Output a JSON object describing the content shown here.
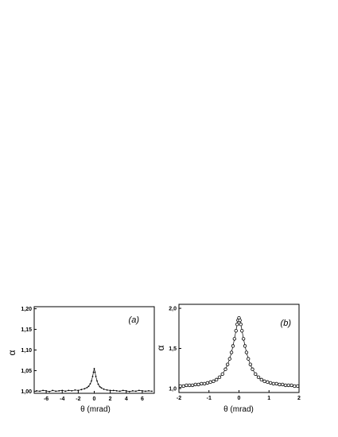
{
  "chart_data": [
    {
      "type": "scatter",
      "panel_label": "(a)",
      "xlabel": "θ (mrad)",
      "ylabel": "α",
      "xlim": [
        -7.5,
        7.5
      ],
      "ylim": [
        0.995,
        1.205
      ],
      "xticks": [
        -6,
        -4,
        -2,
        0,
        2,
        4,
        6
      ],
      "xtick_labels": [
        "-6",
        "-4",
        "-2",
        "0",
        "2",
        "4",
        "6"
      ],
      "yticks": [
        1.0,
        1.05,
        1.1,
        1.15,
        1.2
      ],
      "ytick_labels": [
        "1,00",
        "1,05",
        "1,10",
        "1,15",
        "1,20"
      ],
      "grid": false,
      "series": [
        {
          "marker": "dot",
          "x": [
            -7.2,
            -6.8,
            -6.4,
            -6.0,
            -5.6,
            -5.2,
            -4.8,
            -4.4,
            -4.0,
            -3.6,
            -3.2,
            -2.8,
            -2.4,
            -2.0,
            -1.6,
            -1.2,
            -0.9,
            -0.7,
            -0.5,
            -0.35,
            -0.2,
            -0.1,
            0.0,
            0.1,
            0.2,
            0.35,
            0.5,
            0.7,
            0.9,
            1.2,
            1.6,
            2.0,
            2.4,
            2.8,
            3.2,
            3.6,
            4.0,
            4.4,
            4.8,
            5.2,
            5.6,
            6.0,
            6.4,
            6.8,
            7.2
          ],
          "y": [
            1.001,
            1.0,
            1.002,
            1.001,
            0.999,
            1.002,
            1.0,
            1.001,
            1.002,
            1.0,
            1.002,
            1.001,
            1.003,
            1.002,
            1.004,
            1.006,
            1.009,
            1.012,
            1.018,
            1.025,
            1.036,
            1.046,
            1.055,
            1.046,
            1.036,
            1.025,
            1.017,
            1.011,
            1.008,
            1.005,
            1.003,
            1.002,
            1.002,
            1.001,
            1.0,
            1.002,
            1.001,
            0.999,
            1.001,
            1.0,
            1.002,
            1.001,
            1.0,
            1.001,
            1.0
          ]
        }
      ]
    },
    {
      "type": "scatter",
      "panel_label": "(b)",
      "xlabel": "θ (mrad)",
      "ylabel": "α",
      "xlim": [
        -2,
        2
      ],
      "ylim": [
        0.95,
        2.05
      ],
      "xticks": [
        -2,
        -1,
        0,
        1,
        2
      ],
      "xtick_labels": [
        "-2",
        "-1",
        "0",
        "1",
        "2"
      ],
      "yticks": [
        1.0,
        1.5,
        2.0
      ],
      "ytick_labels": [
        "1,0",
        "1,5",
        "2,0"
      ],
      "grid": false,
      "series": [
        {
          "marker": "open-circle",
          "x": [
            -1.95,
            -1.85,
            -1.75,
            -1.65,
            -1.55,
            -1.45,
            -1.35,
            -1.25,
            -1.15,
            -1.05,
            -0.95,
            -0.85,
            -0.75,
            -0.65,
            -0.55,
            -0.45,
            -0.38,
            -0.31,
            -0.25,
            -0.2,
            -0.15,
            -0.1,
            -0.06,
            -0.03,
            0.0,
            0.03,
            0.06,
            0.1,
            0.15,
            0.2,
            0.25,
            0.31,
            0.38,
            0.45,
            0.55,
            0.65,
            0.75,
            0.85,
            0.95,
            1.05,
            1.15,
            1.25,
            1.35,
            1.45,
            1.55,
            1.65,
            1.75,
            1.85,
            1.95
          ],
          "y": [
            1.03,
            1.03,
            1.04,
            1.04,
            1.04,
            1.05,
            1.05,
            1.06,
            1.06,
            1.07,
            1.08,
            1.09,
            1.11,
            1.14,
            1.18,
            1.24,
            1.3,
            1.37,
            1.45,
            1.53,
            1.62,
            1.72,
            1.8,
            1.85,
            1.88,
            1.85,
            1.8,
            1.72,
            1.62,
            1.53,
            1.45,
            1.37,
            1.3,
            1.24,
            1.18,
            1.14,
            1.11,
            1.09,
            1.08,
            1.07,
            1.06,
            1.06,
            1.05,
            1.05,
            1.04,
            1.04,
            1.04,
            1.03,
            1.03
          ]
        }
      ]
    }
  ]
}
